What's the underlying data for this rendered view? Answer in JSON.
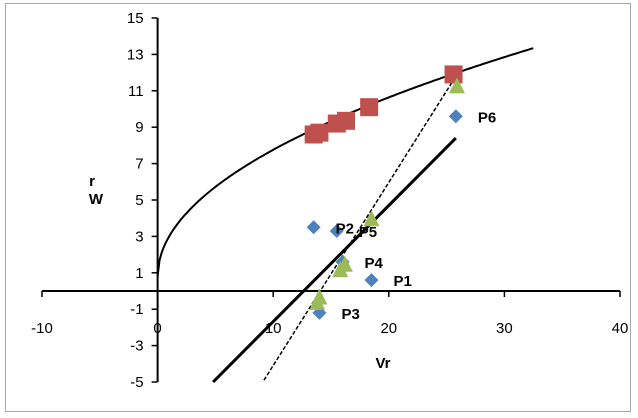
{
  "chart_data": {
    "type": "scatter",
    "title": "",
    "xlabel": "Vr",
    "ylabel_lines": [
      "r",
      "W"
    ],
    "xlim": [
      -10,
      40
    ],
    "ylim": [
      -5,
      15
    ],
    "x_ticks": [
      -10,
      0,
      10,
      20,
      30,
      40
    ],
    "y_ticks": [
      -5,
      -3,
      -1,
      1,
      3,
      5,
      7,
      9,
      11,
      13,
      15
    ],
    "grid": false,
    "legend": "none",
    "colors": {
      "diamond": "#4f81bd",
      "square": "#c0504d",
      "triangle": "#9bbb59",
      "line": "#000000"
    },
    "series": [
      {
        "marker": "diamond",
        "points": [
          {
            "x": 18.5,
            "y": 0.6,
            "label": "P1"
          },
          {
            "x": 13.5,
            "y": 3.5,
            "label": "P2"
          },
          {
            "x": 14.0,
            "y": -1.2,
            "label": "P3"
          },
          {
            "x": 16.0,
            "y": 1.6,
            "label": "P4"
          },
          {
            "x": 15.5,
            "y": 3.3,
            "label": "P5"
          },
          {
            "x": 25.8,
            "y": 9.6,
            "label": "P6"
          }
        ]
      },
      {
        "marker": "square",
        "points": [
          {
            "x": 13.5,
            "y": 8.6
          },
          {
            "x": 14.0,
            "y": 8.7
          },
          {
            "x": 15.5,
            "y": 9.2
          },
          {
            "x": 16.3,
            "y": 9.35
          },
          {
            "x": 18.3,
            "y": 10.1
          },
          {
            "x": 25.6,
            "y": 11.9
          }
        ]
      },
      {
        "marker": "triangle",
        "points": [
          {
            "x": 13.8,
            "y": -0.6
          },
          {
            "x": 14.0,
            "y": -0.3
          },
          {
            "x": 15.8,
            "y": 1.2
          },
          {
            "x": 16.2,
            "y": 1.5
          },
          {
            "x": 18.5,
            "y": 4.0
          },
          {
            "x": 25.9,
            "y": 11.3
          }
        ]
      }
    ],
    "curves": [
      {
        "style": "solid-thin",
        "function": "sqrt",
        "x_from": 0,
        "x_to": 32.5,
        "y_at_x0": 0.8,
        "coef": 2.2
      },
      {
        "style": "solid-thick",
        "from": [
          4.8,
          -5
        ],
        "to": [
          25.8,
          8.4
        ]
      },
      {
        "style": "dashed",
        "from": [
          9.2,
          -4.9
        ],
        "to": [
          26.0,
          12.0
        ]
      }
    ]
  }
}
